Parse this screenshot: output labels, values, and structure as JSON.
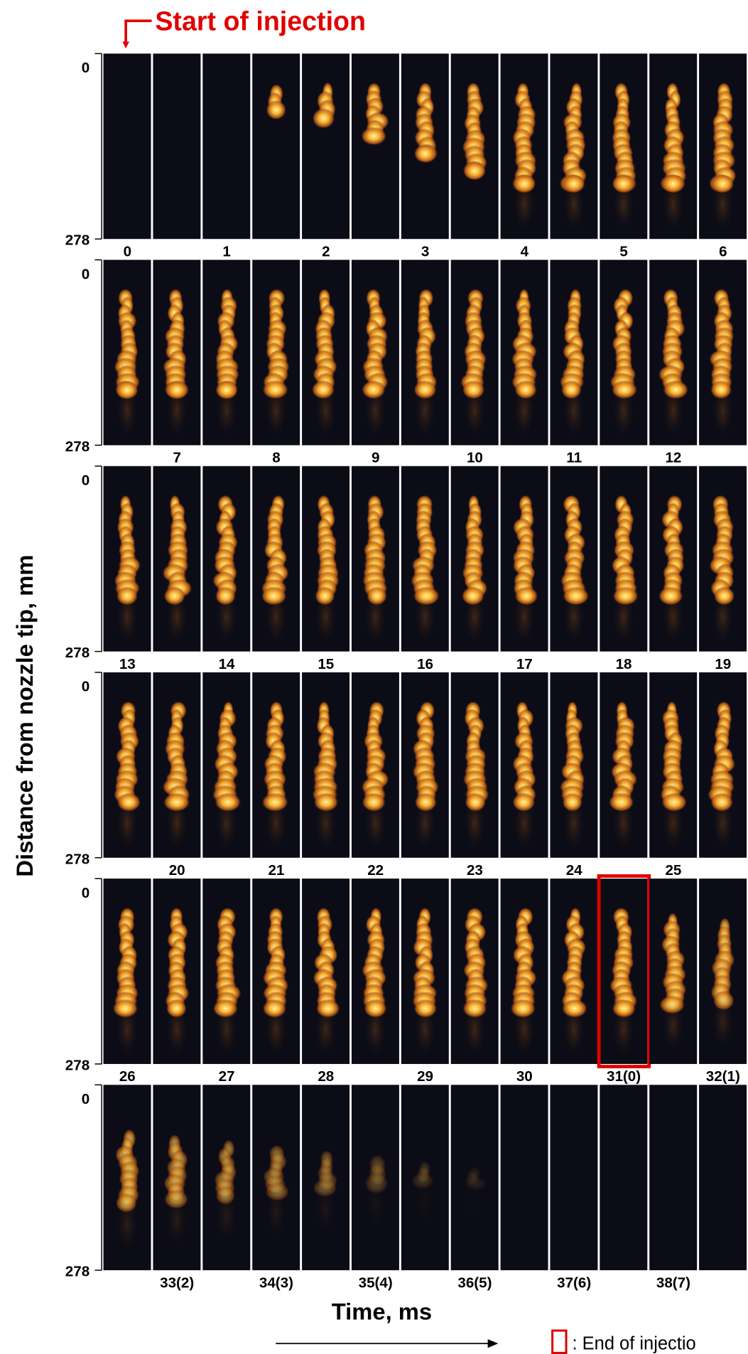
{
  "header": {
    "title": "Start of injection"
  },
  "y_axis": {
    "title": "Distance from nozzle tip, mm",
    "top_label": "0",
    "bottom_label": "278"
  },
  "x_axis": {
    "title": "Time, ms"
  },
  "frame_labels": [
    "0",
    "1",
    "2",
    "3",
    "4",
    "5",
    "6",
    "7",
    "8",
    "9",
    "10",
    "11",
    "12",
    "13",
    "14",
    "15",
    "16",
    "17",
    "18",
    "19",
    "20",
    "21",
    "22",
    "23",
    "24",
    "25",
    "26",
    "27",
    "28",
    "29",
    "30",
    "31(0)",
    "32(1)",
    "33(2)",
    "34(3)",
    "35(4)",
    "36(5)",
    "37(6)",
    "38(7)"
  ],
  "legend": {
    "label": ": End of injectio"
  }
}
